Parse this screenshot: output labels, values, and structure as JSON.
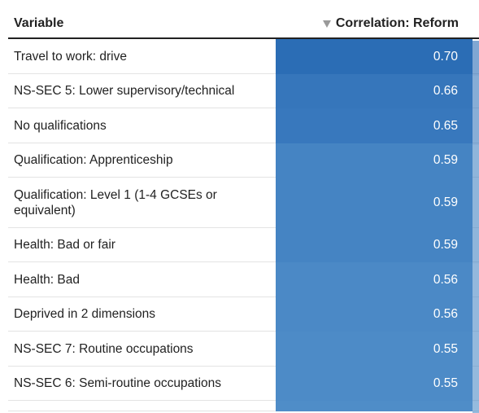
{
  "table": {
    "columns": {
      "variable": "Variable",
      "correlation": "Correlation: Reform"
    },
    "sort_icon": "sort-descending-icon",
    "rows": [
      {
        "label": "Travel to work: drive",
        "value": "0.70",
        "color": "#2b6db5"
      },
      {
        "label": "NS-SEC 5: Lower supervisory/technical",
        "value": "0.66",
        "color": "#3676bb"
      },
      {
        "label": "No qualifications",
        "value": "0.65",
        "color": "#3878bd"
      },
      {
        "label": "Qualification: Apprenticeship",
        "value": "0.59",
        "color": "#4584c3"
      },
      {
        "label": "Qualification: Level 1 (1-4 GCSEs or equivalent)",
        "value": "0.59",
        "color": "#4584c3"
      },
      {
        "label": "Health: Bad or fair",
        "value": "0.59",
        "color": "#4584c3"
      },
      {
        "label": "Health: Bad",
        "value": "0.56",
        "color": "#4b89c6"
      },
      {
        "label": "Deprived in 2 dimensions",
        "value": "0.56",
        "color": "#4b89c6"
      },
      {
        "label": "NS-SEC 7: Routine occupations",
        "value": "0.55",
        "color": "#4d8bc7"
      },
      {
        "label": "NS-SEC 6: Semi-routine occupations",
        "value": "0.55",
        "color": "#4d8bc7"
      },
      {
        "label": "",
        "value": "",
        "color": "#4f8dc8"
      }
    ]
  }
}
